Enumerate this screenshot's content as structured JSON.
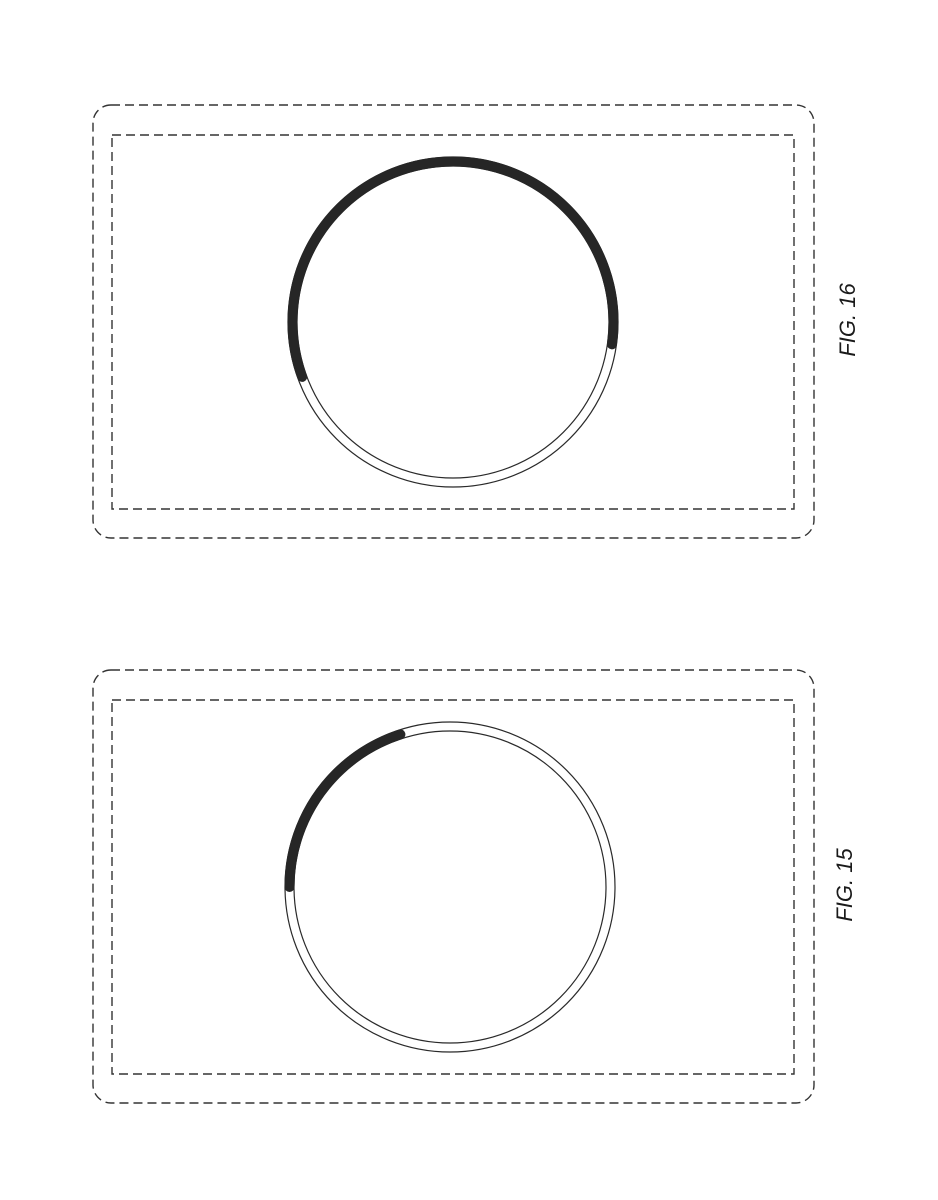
{
  "figures": [
    {
      "label": "FIG. 16",
      "progress": 0.58,
      "arc_start_deg": 160,
      "arc_end_deg": 368,
      "colors": {
        "line": "#2a2a2a",
        "arc": "#262626",
        "dashed": "#333333"
      }
    },
    {
      "label": "FIG. 15",
      "progress": 0.2,
      "arc_start_deg": 180,
      "arc_end_deg": 252,
      "colors": {
        "line": "#2a2a2a",
        "arc": "#262626",
        "dashed": "#333333"
      }
    }
  ]
}
